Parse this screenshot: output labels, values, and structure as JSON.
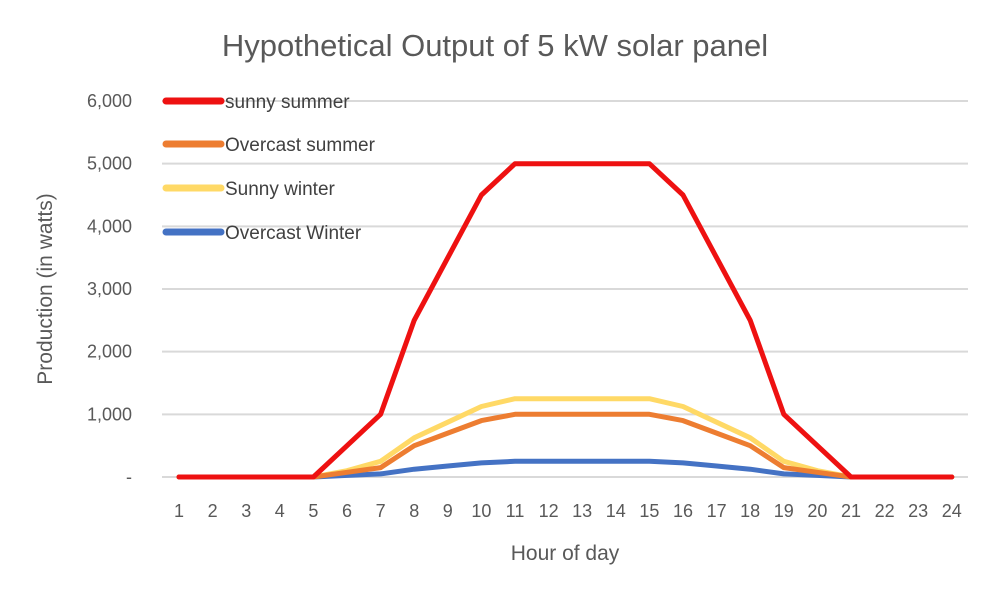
{
  "chart_data": {
    "type": "line",
    "title": "Hypothetical Output of 5 kW solar panel",
    "xlabel": "Hour of day",
    "ylabel": "Production (in watts)",
    "x": [
      1,
      2,
      3,
      4,
      5,
      6,
      7,
      8,
      9,
      10,
      11,
      12,
      13,
      14,
      15,
      16,
      17,
      18,
      19,
      20,
      21,
      22,
      23,
      24
    ],
    "ylim": [
      0,
      6000
    ],
    "yticks": [
      0,
      1000,
      2000,
      3000,
      4000,
      5000,
      6000
    ],
    "ytick_labels": [
      "-",
      "1,000",
      "2,000",
      "3,000",
      "4,000",
      "5,000",
      "6,000"
    ],
    "grid": true,
    "legend_position": "top-left",
    "series": [
      {
        "name": "sunny summer",
        "color": "#ee1111",
        "values": [
          0,
          0,
          0,
          0,
          0,
          500,
          1000,
          2500,
          3500,
          4500,
          5000,
          5000,
          5000,
          5000,
          5000,
          4500,
          3500,
          2500,
          1000,
          500,
          0,
          0,
          0,
          0
        ]
      },
      {
        "name": "Overcast summer",
        "color": "#ed7d31",
        "values": [
          0,
          0,
          0,
          0,
          0,
          75,
          150,
          500,
          700,
          900,
          1000,
          1000,
          1000,
          1000,
          1000,
          900,
          700,
          500,
          150,
          75,
          0,
          0,
          0,
          0
        ]
      },
      {
        "name": "Sunny winter",
        "color": "#ffd966",
        "values": [
          0,
          0,
          0,
          0,
          0,
          100,
          250,
          625,
          875,
          1125,
          1250,
          1250,
          1250,
          1250,
          1250,
          1125,
          875,
          625,
          250,
          100,
          0,
          0,
          0,
          0
        ]
      },
      {
        "name": "Overcast  Winter",
        "color": "#4472c4",
        "values": [
          0,
          0,
          0,
          0,
          0,
          25,
          50,
          125,
          175,
          225,
          250,
          250,
          250,
          250,
          250,
          225,
          175,
          125,
          50,
          25,
          0,
          0,
          0,
          0
        ]
      }
    ]
  }
}
